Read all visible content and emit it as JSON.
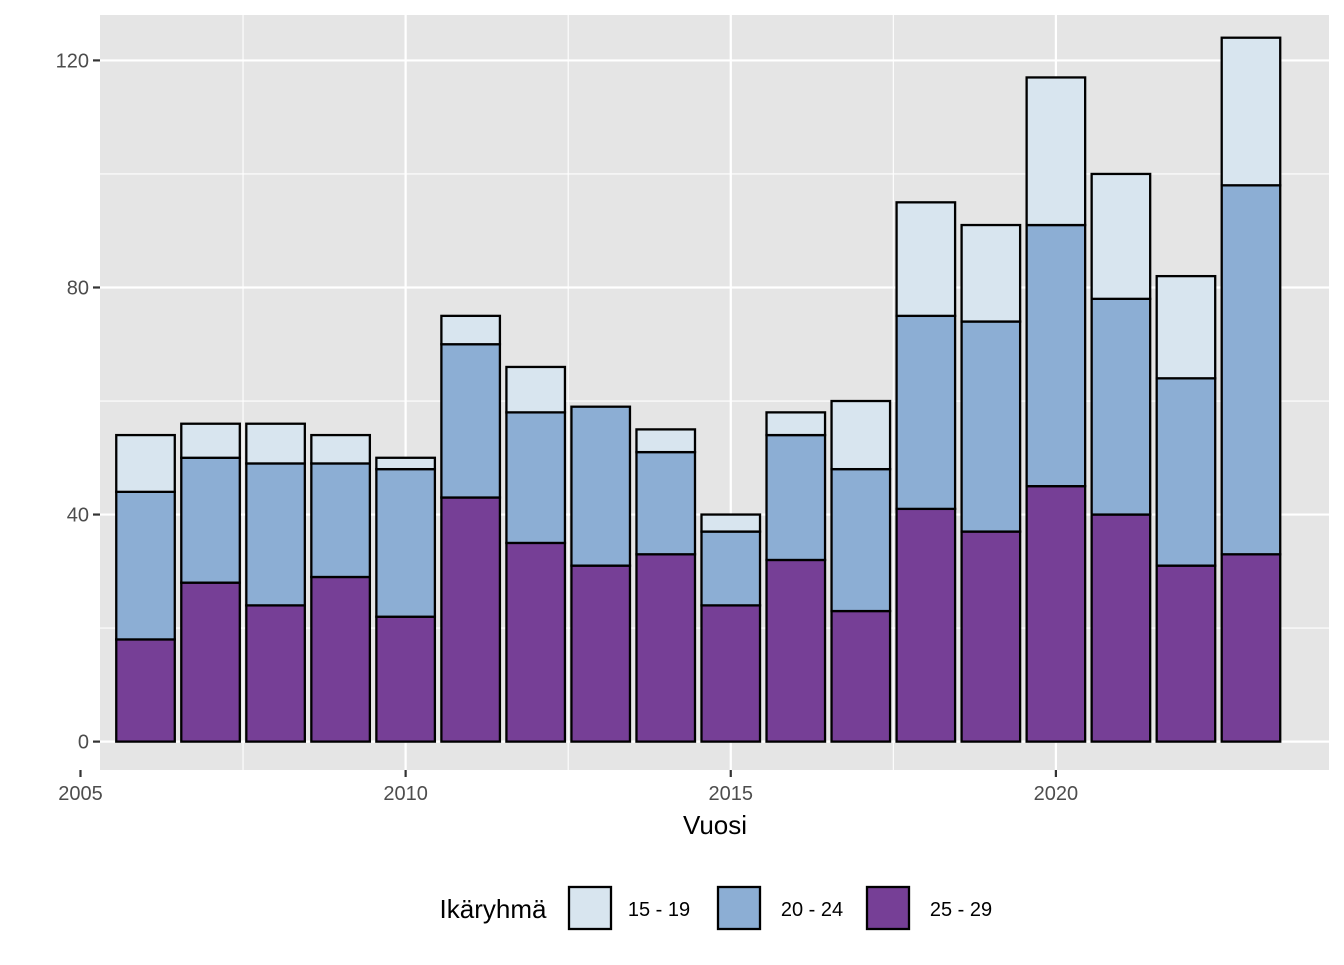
{
  "chart_data": {
    "type": "bar",
    "stacked": true,
    "title": "",
    "xlabel": "Vuosi",
    "ylabel": "",
    "x": [
      2006,
      2007,
      2008,
      2009,
      2010,
      2011,
      2012,
      2013,
      2014,
      2015,
      2016,
      2017,
      2018,
      2019,
      2020,
      2021,
      2022,
      2023
    ],
    "series": [
      {
        "name": "25 - 29",
        "color": "#763f96",
        "values": [
          18,
          28,
          24,
          29,
          22,
          43,
          35,
          31,
          33,
          24,
          32,
          23,
          41,
          37,
          45,
          40,
          31,
          33
        ]
      },
      {
        "name": "20 - 24",
        "color": "#8caed4",
        "values": [
          26,
          22,
          25,
          20,
          26,
          27,
          23,
          28,
          18,
          13,
          22,
          25,
          34,
          37,
          46,
          38,
          33,
          65
        ]
      },
      {
        "name": "15 - 19",
        "color": "#d8e5ef",
        "values": [
          10,
          6,
          7,
          5,
          2,
          5,
          8,
          0,
          4,
          3,
          4,
          12,
          20,
          17,
          26,
          22,
          18,
          26
        ]
      }
    ],
    "xlim": [
      2005.3,
      2024.2
    ],
    "ylim": [
      -5,
      128
    ],
    "x_ticks": [
      "2005",
      "2010",
      "2015",
      "2020"
    ],
    "y_ticks": [
      "0",
      "40",
      "80",
      "120"
    ],
    "grid": true,
    "legend": {
      "title": "Ikäryhmä",
      "position": "bottom",
      "entries": [
        "15 - 19",
        "20 - 24",
        "25 - 29"
      ]
    },
    "panel_color": "#e5e5e5",
    "bar_outline": "#000000"
  }
}
